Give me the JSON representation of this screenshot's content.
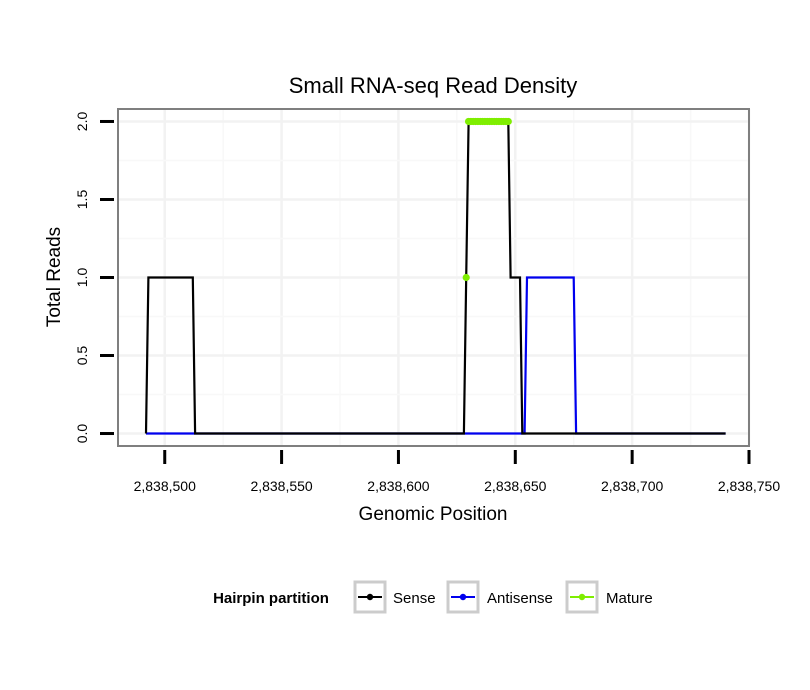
{
  "chart_data": {
    "type": "line",
    "title": "Small RNA-seq Read Density",
    "xlabel": "Genomic Position",
    "ylabel": "Total Reads",
    "xlim": [
      2838480,
      2838750
    ],
    "ylim": [
      -0.08,
      2.08
    ],
    "x_ticks": [
      2838500,
      2838550,
      2838600,
      2838650,
      2838700,
      2838750
    ],
    "x_tick_labels": [
      "2,838,500",
      "2,838,550",
      "2,838,600",
      "2,838,650",
      "2,838,700",
      "2,838,750"
    ],
    "y_ticks": [
      0,
      0.5,
      1,
      1.5,
      2
    ],
    "y_tick_labels": [
      "0.0",
      "0.5",
      "1.0",
      "1.5",
      "2.0"
    ],
    "grid": true,
    "legend_position": "bottom",
    "legend_title": "Hairpin partition",
    "series": [
      {
        "name": "Sense",
        "color": "#000000",
        "style": "line",
        "points": [
          [
            2838492,
            0
          ],
          [
            2838493,
            1
          ],
          [
            2838512,
            1
          ],
          [
            2838513,
            0
          ],
          [
            2838628,
            0
          ],
          [
            2838629,
            1
          ],
          [
            2838630,
            2
          ],
          [
            2838647,
            2
          ],
          [
            2838648,
            1
          ],
          [
            2838652,
            1
          ],
          [
            2838653,
            0
          ],
          [
            2838740,
            0
          ]
        ]
      },
      {
        "name": "Antisense",
        "color": "#0000ee",
        "style": "line",
        "points": [
          [
            2838492,
            0
          ],
          [
            2838654,
            0
          ],
          [
            2838655,
            1
          ],
          [
            2838675,
            1
          ],
          [
            2838676,
            0
          ],
          [
            2838740,
            0
          ]
        ]
      },
      {
        "name": "Mature",
        "color": "#7fee00",
        "style": "points",
        "points": [
          [
            2838629,
            1
          ],
          [
            2838630,
            2
          ],
          [
            2838631,
            2
          ],
          [
            2838632,
            2
          ],
          [
            2838633,
            2
          ],
          [
            2838634,
            2
          ],
          [
            2838635,
            2
          ],
          [
            2838636,
            2
          ],
          [
            2838637,
            2
          ],
          [
            2838638,
            2
          ],
          [
            2838639,
            2
          ],
          [
            2838640,
            2
          ],
          [
            2838641,
            2
          ],
          [
            2838642,
            2
          ],
          [
            2838643,
            2
          ],
          [
            2838644,
            2
          ],
          [
            2838645,
            2
          ],
          [
            2838646,
            2
          ],
          [
            2838647,
            2
          ]
        ]
      }
    ]
  }
}
